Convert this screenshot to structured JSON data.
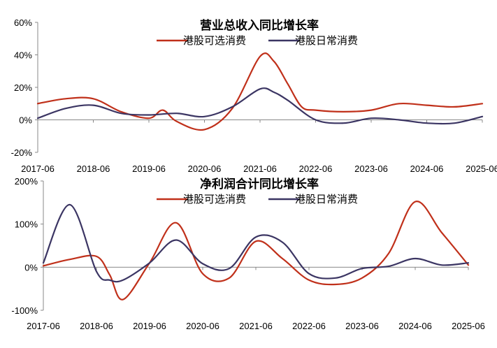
{
  "chart_data": [
    {
      "type": "line",
      "title": "营业总收入同比增长率",
      "x_ticks": [
        "2017-06",
        "2018-06",
        "2019-06",
        "2020-06",
        "2021-06",
        "2022-06",
        "2023-06",
        "2024-06",
        "2025-06"
      ],
      "ylim": [
        -20,
        60
      ],
      "y_ticks": [
        "-20%",
        "0%",
        "20%",
        "40%",
        "60%"
      ],
      "y_tick_values": [
        -20,
        0,
        20,
        40,
        60
      ],
      "legend": "top-center",
      "colors": {
        "港股可选消费": "#c0301a",
        "港股日常消费": "#3b3563"
      },
      "series": [
        {
          "name": "港股可选消费",
          "x": [
            2017.5,
            2018.0,
            2018.5,
            2019.0,
            2019.5,
            2019.75,
            2020.0,
            2020.5,
            2021.0,
            2021.5,
            2021.75,
            2022.0,
            2022.25,
            2022.5,
            2023.0,
            2023.5,
            2024.0,
            2024.5,
            2025.0,
            2025.5
          ],
          "y": [
            10,
            13,
            13,
            5,
            1,
            6,
            -1,
            -6,
            7,
            39,
            36,
            22,
            8,
            6,
            5,
            6,
            10,
            9,
            8,
            10
          ]
        },
        {
          "name": "港股日常消费",
          "x": [
            2017.5,
            2018.0,
            2018.5,
            2019.0,
            2019.5,
            2020.0,
            2020.5,
            2021.0,
            2021.5,
            2021.75,
            2022.0,
            2022.5,
            2023.0,
            2023.5,
            2024.0,
            2024.5,
            2025.0,
            2025.5
          ],
          "y": [
            1,
            7,
            9,
            4,
            3,
            4,
            2,
            8,
            19,
            17,
            12,
            0,
            -2,
            1,
            0,
            -2,
            -2,
            2
          ]
        }
      ]
    },
    {
      "type": "line",
      "title": "净利润合计同比增长率",
      "x_ticks": [
        "2017-06",
        "2018-06",
        "2019-06",
        "2020-06",
        "2021-06",
        "2022-06",
        "2023-06",
        "2024-06",
        "2025-06"
      ],
      "ylim": [
        -100,
        200
      ],
      "y_ticks": [
        "-100%",
        "0%",
        "100%",
        "200%"
      ],
      "y_tick_values": [
        -100,
        0,
        100,
        200
      ],
      "legend": "top-center",
      "colors": {
        "港股可选消费": "#c0301a",
        "港股日常消费": "#3b3563"
      },
      "series": [
        {
          "name": "港股可选消费",
          "x": [
            2017.5,
            2018.0,
            2018.5,
            2018.75,
            2019.0,
            2019.5,
            2020.0,
            2020.5,
            2021.0,
            2021.5,
            2022.0,
            2022.5,
            2023.0,
            2023.5,
            2024.0,
            2024.5,
            2025.0,
            2025.5
          ],
          "y": [
            3,
            18,
            25,
            -18,
            -75,
            10,
            103,
            -15,
            -25,
            60,
            20,
            -30,
            -40,
            -25,
            32,
            152,
            80,
            5
          ]
        },
        {
          "name": "港股日常消费",
          "x": [
            2017.5,
            2018.0,
            2018.5,
            2018.75,
            2019.0,
            2019.5,
            2020.0,
            2020.5,
            2021.0,
            2021.5,
            2022.0,
            2022.5,
            2023.0,
            2023.5,
            2024.0,
            2024.5,
            2025.0,
            2025.5
          ],
          "y": [
            10,
            145,
            -10,
            -30,
            -30,
            10,
            63,
            8,
            -3,
            70,
            58,
            -15,
            -25,
            -3,
            2,
            20,
            5,
            10
          ]
        }
      ]
    }
  ]
}
